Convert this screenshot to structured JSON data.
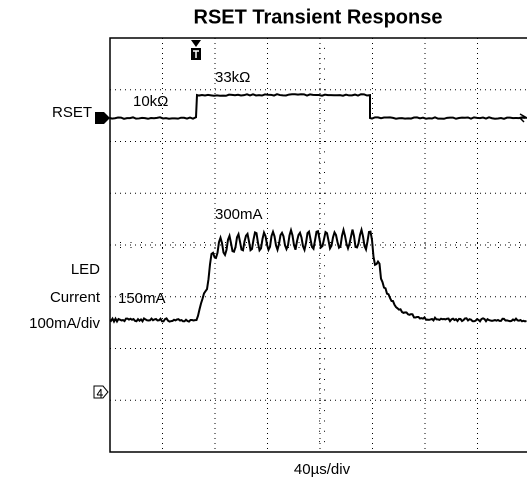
{
  "title": "RSET Transient Response",
  "channels": [
    {
      "label": "RSET"
    },
    {
      "label_lines": [
        "LED",
        "Current",
        "100mA/div"
      ]
    }
  ],
  "annotations": [
    "33kΩ",
    "10kΩ",
    "300mA",
    "150mA"
  ],
  "x_scale": "40µs/div"
}
